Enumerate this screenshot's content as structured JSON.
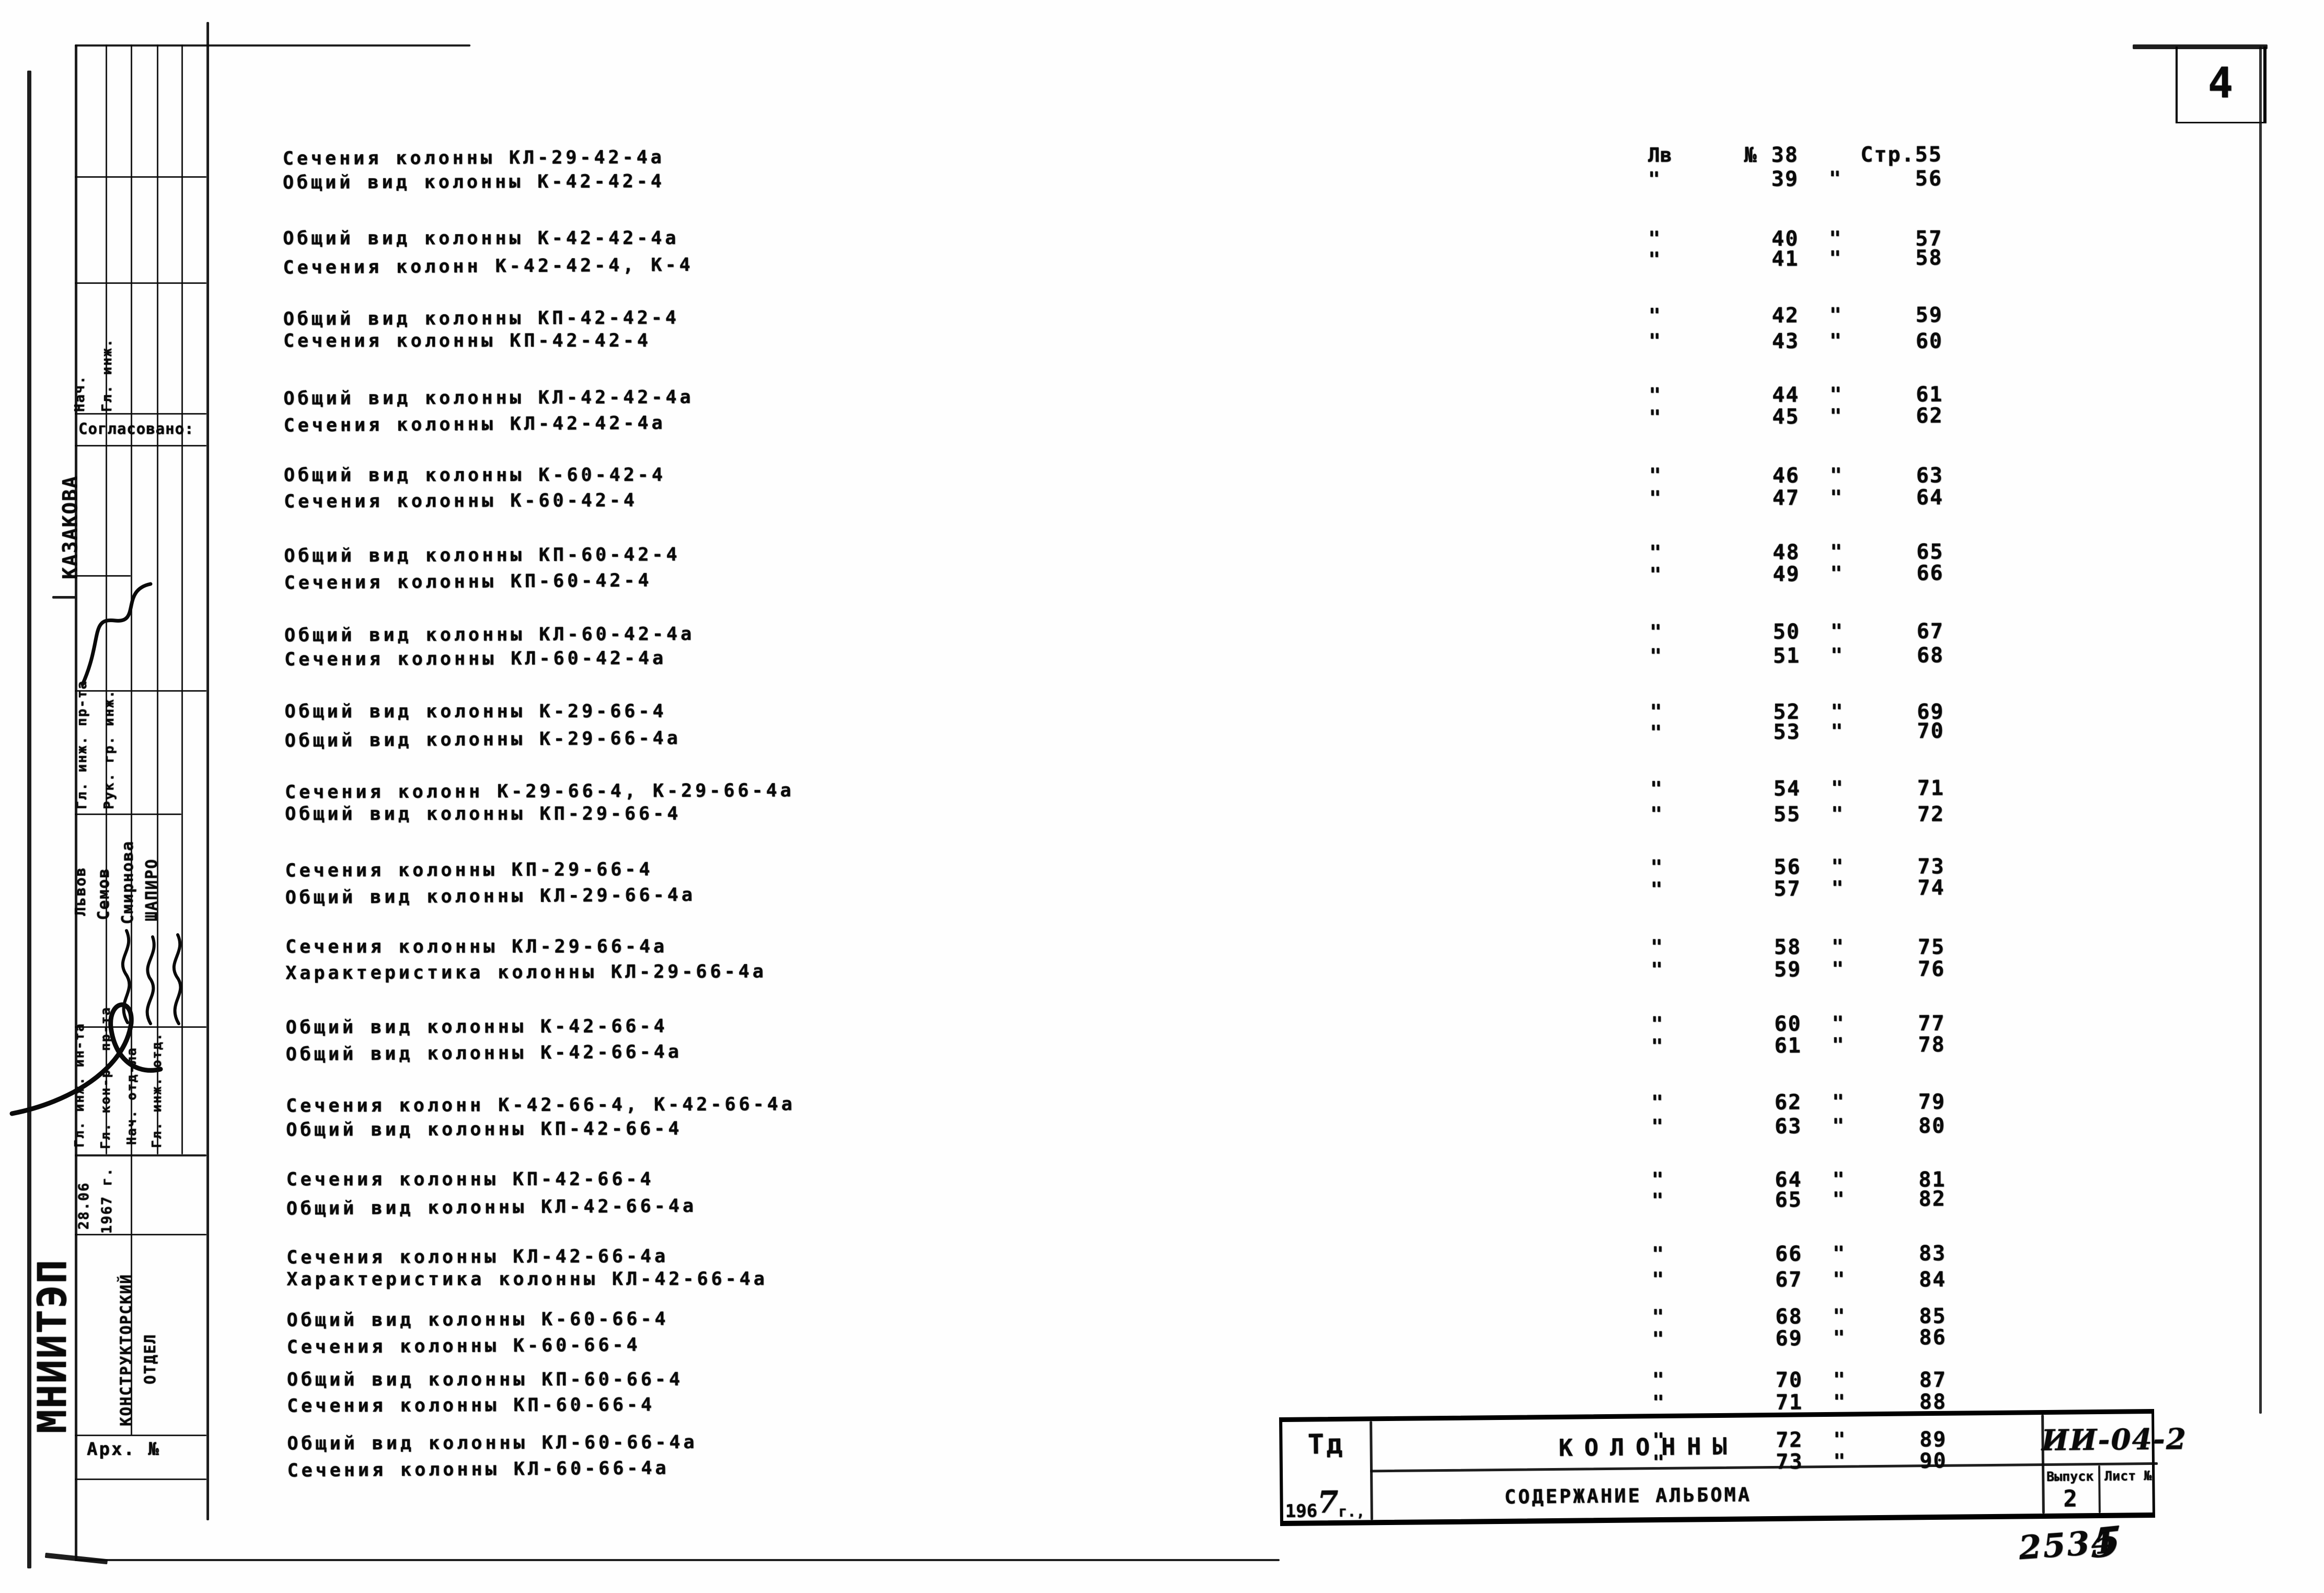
{
  "page_number": "4",
  "toc": {
    "header": {
      "list_col": "Лв",
      "num_sign": "№",
      "page_prefix": "Стр.",
      "ditto": "\""
    },
    "entries": [
      {
        "title": "Сечения колонны КЛ-29-42-4а",
        "sheet": "38",
        "page": "55"
      },
      {
        "title": "Общий вид колонны К-42-42-4",
        "sheet": "39",
        "page": "56"
      },
      {
        "title": "Общий вид колонны К-42-42-4а",
        "sheet": "40",
        "page": "57"
      },
      {
        "title": "Сечения колонн К-42-42-4, К-4",
        "sheet": "41",
        "page": "58"
      },
      {
        "title": "Общий вид колонны КП-42-42-4",
        "sheet": "42",
        "page": "59"
      },
      {
        "title": "Сечения колонны КП-42-42-4",
        "sheet": "43",
        "page": "60"
      },
      {
        "title": "Общий вид колонны КЛ-42-42-4а",
        "sheet": "44",
        "page": "61"
      },
      {
        "title": "Сечения колонны КЛ-42-42-4а",
        "sheet": "45",
        "page": "62"
      },
      {
        "title": "Общий вид колонны К-60-42-4",
        "sheet": "46",
        "page": "63"
      },
      {
        "title": "Сечения колонны К-60-42-4",
        "sheet": "47",
        "page": "64"
      },
      {
        "title": "Общий вид колонны КП-60-42-4",
        "sheet": "48",
        "page": "65"
      },
      {
        "title": "Сечения колонны КП-60-42-4",
        "sheet": "49",
        "page": "66"
      },
      {
        "title": "Общий вид колонны КЛ-60-42-4а",
        "sheet": "50",
        "page": "67"
      },
      {
        "title": "Сечения колонны КЛ-60-42-4а",
        "sheet": "51",
        "page": "68"
      },
      {
        "title": "Общий вид колонны К-29-66-4",
        "sheet": "52",
        "page": "69"
      },
      {
        "title": "Общий вид колонны К-29-66-4а",
        "sheet": "53",
        "page": "70"
      },
      {
        "title": "Сечения колонн К-29-66-4, К-29-66-4а",
        "sheet": "54",
        "page": "71"
      },
      {
        "title": "Общий вид колонны КП-29-66-4",
        "sheet": "55",
        "page": "72"
      },
      {
        "title": "Сечения колонны КП-29-66-4",
        "sheet": "56",
        "page": "73"
      },
      {
        "title": "Общий вид колонны КЛ-29-66-4а",
        "sheet": "57",
        "page": "74"
      },
      {
        "title": "Сечения колонны КЛ-29-66-4а",
        "sheet": "58",
        "page": "75"
      },
      {
        "title": "Характеристика колонны КЛ-29-66-4а",
        "sheet": "59",
        "page": "76"
      },
      {
        "title": "Общий вид колонны К-42-66-4",
        "sheet": "60",
        "page": "77"
      },
      {
        "title": "Общий вид колонны К-42-66-4а",
        "sheet": "61",
        "page": "78"
      },
      {
        "title": "Сечения колонн К-42-66-4, К-42-66-4а",
        "sheet": "62",
        "page": "79"
      },
      {
        "title": "Общий вид колонны КП-42-66-4",
        "sheet": "63",
        "page": "80"
      },
      {
        "title": "Сечения колонны КП-42-66-4",
        "sheet": "64",
        "page": "81"
      },
      {
        "title": "Общий вид колонны КЛ-42-66-4а",
        "sheet": "65",
        "page": "82"
      },
      {
        "title": "Сечения колонны КЛ-42-66-4а",
        "sheet": "66",
        "page": "83"
      },
      {
        "title": "Характеристика колонны КЛ-42-66-4а",
        "sheet": "67",
        "page": "84"
      },
      {
        "title": "Общий вид колонны К-60-66-4",
        "sheet": "68",
        "page": "85"
      },
      {
        "title": "Сечения колонны К-60-66-4",
        "sheet": "69",
        "page": "86"
      },
      {
        "title": "Общий вид колонны КП-60-66-4",
        "sheet": "70",
        "page": "87"
      },
      {
        "title": "Сечения колонны КП-60-66-4",
        "sheet": "71",
        "page": "88"
      },
      {
        "title": "Общий вид колонны КЛ-60-66-4а",
        "sheet": "72",
        "page": "89"
      },
      {
        "title": "Сечения колонны КЛ-60-66-4а",
        "sheet": "73",
        "page": "90"
      }
    ]
  },
  "title_block": {
    "doc_type": "Тд",
    "year_prefix": "196",
    "year_written": "7",
    "year_suffix": "г.,",
    "title": "КОЛОННЫ",
    "subtitle": "СОДЕРЖАНИЕ АЛЬБОМА",
    "code": "ИИ-04-2",
    "issue_label": "Выпуск",
    "issue_value": "2",
    "sheet_label": "Лист №"
  },
  "sidebar": {
    "top_roles": [
      "Нач.",
      "Гл. инж."
    ],
    "approved_label": "Согласовано:",
    "approved_by": "КАЗАКОВА",
    "mid_roles": [
      "Гл. инж. пр-та",
      "Рук. гр. инж."
    ],
    "names": [
      "Львов",
      "Семов",
      "Смирнова",
      "ШАПИРО"
    ],
    "bottom_roles": [
      "Гл. инж. ин-та",
      "Гл. кон-р. пр-та",
      "Нач. отд-ла",
      "Гл. инж. отд."
    ],
    "date_day": "28.06",
    "date_year": "1967 г.",
    "org": "МНИИТЭП",
    "dept_line1": "КОНСТРУКТОРСКИЙ",
    "dept_line2": "ОТДЕЛ",
    "archive_label": "Арх. №"
  },
  "annotations": {
    "archive_no": "2534",
    "mark": "5"
  }
}
